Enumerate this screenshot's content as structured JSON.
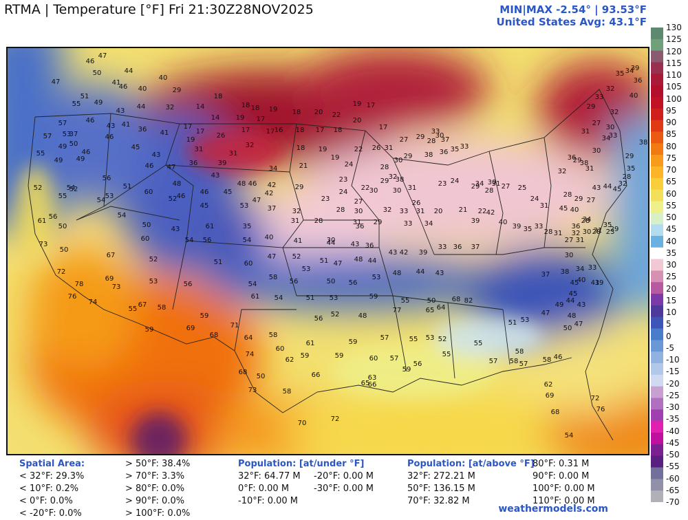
{
  "header": {
    "title": "RTMA | Temperature [°F]  Fri 21:30Z28NOV2025",
    "minmax": "MIN|MAX -2.54° | 93.53°F",
    "avg": "United States Avg: 43.1°F"
  },
  "colorbar": {
    "ticks": [
      "130",
      "125",
      "120",
      "115",
      "110",
      "105",
      "100",
      "95",
      "90",
      "85",
      "80",
      "75",
      "70",
      "65",
      "60",
      "55",
      "50",
      "45",
      "40",
      "35",
      "30",
      "25",
      "20",
      "15",
      "10",
      "5",
      "0",
      "-5",
      "-10",
      "-15",
      "-20",
      "-25",
      "-30",
      "-35",
      "-40",
      "-45",
      "-50",
      "-55",
      "-60",
      "-65",
      "-70"
    ],
    "colors": [
      "#5b8a6e",
      "#6fa07a",
      "#8a5a70",
      "#9a3050",
      "#a81a38",
      "#b30f2b",
      "#c01224",
      "#d0201c",
      "#e03a14",
      "#ea5a10",
      "#f27a12",
      "#f89a1a",
      "#fbb527",
      "#f8cf3a",
      "#f2e05a",
      "#eef08a",
      "#d8f0c8",
      "#b4dcee",
      "#6ab0e0",
      "#ffffff",
      "#f2c8d4",
      "#d690b4",
      "#b85aa0",
      "#7a3aa8",
      "#4e3a9a",
      "#3d54b8",
      "#4a7ccc",
      "#6a98d6",
      "#90b2e0",
      "#b2c8ea",
      "#cfd9f0",
      "#c8a0d0",
      "#b070c0",
      "#a040b0",
      "#e020b0",
      "#c010a0",
      "#7a2090",
      "#5a2080",
      "#70709a",
      "#9090a8",
      "#b0b0b8"
    ]
  },
  "map_labels": [
    {
      "t": "47",
      "c": "#fff"
    },
    {
      "t": "46",
      "c": "#fff"
    },
    {
      "t": "50",
      "c": "#fff"
    },
    {
      "t": "44",
      "c": "#fff"
    },
    {
      "t": "41",
      "c": "#fff"
    },
    {
      "t": "46",
      "c": "#fff"
    },
    {
      "t": "40",
      "c": "#fff"
    },
    {
      "t": "40",
      "c": "#fff"
    },
    {
      "t": "29",
      "c": "#fff"
    },
    {
      "t": "47",
      "c": "#fff"
    },
    {
      "t": "51",
      "c": "#fff"
    },
    {
      "t": "49",
      "c": "#fff"
    },
    {
      "t": "55",
      "c": "#fff"
    },
    {
      "t": "43",
      "c": "#fff"
    },
    {
      "t": "44",
      "c": "#fff"
    },
    {
      "t": "18",
      "c": "#fff"
    },
    {
      "t": "14",
      "c": "#fff"
    },
    {
      "t": "18",
      "c": "#fff"
    },
    {
      "t": "18",
      "c": "#fff"
    },
    {
      "t": "19",
      "c": "#fff"
    },
    {
      "t": "18",
      "c": "#fff"
    },
    {
      "t": "20",
      "c": "#fff"
    },
    {
      "t": "22",
      "c": "#fff"
    },
    {
      "t": "19",
      "c": "#fff"
    },
    {
      "t": "17",
      "c": "#fff"
    },
    {
      "t": "57",
      "c": "#fff"
    },
    {
      "t": "46",
      "c": "#fff"
    },
    {
      "t": "43",
      "c": "#fff"
    },
    {
      "t": "41",
      "c": "#fff"
    },
    {
      "t": "36",
      "c": "#fff"
    },
    {
      "t": "32",
      "c": "#fff"
    },
    {
      "t": "17",
      "c": "#fff"
    },
    {
      "t": "14",
      "c": "#fff"
    },
    {
      "t": "19",
      "c": "#fff"
    },
    {
      "t": "17",
      "c": "#fff"
    },
    {
      "t": "17",
      "c": "#fff"
    },
    {
      "t": "57",
      "c": "#fff"
    },
    {
      "t": "53",
      "c": "#fff"
    },
    {
      "t": "37",
      "c": "#fff"
    },
    {
      "t": "46",
      "c": "#fff"
    },
    {
      "t": "41",
      "c": "#fff"
    },
    {
      "t": "19",
      "c": "#fff"
    },
    {
      "t": "17",
      "c": "#fff"
    },
    {
      "t": "26",
      "c": "#fff"
    },
    {
      "t": "17",
      "c": "#fff"
    },
    {
      "t": "16",
      "c": "#fff"
    },
    {
      "t": "18",
      "c": "#fff"
    },
    {
      "t": "17",
      "c": "#fff"
    },
    {
      "t": "18",
      "c": "#fff"
    },
    {
      "t": "20",
      "c": "#fff"
    },
    {
      "t": "17",
      "c": "#fff"
    },
    {
      "t": "49",
      "c": "#fff"
    },
    {
      "t": "50",
      "c": "#fff"
    },
    {
      "t": "46",
      "c": "#fff"
    },
    {
      "t": "45",
      "c": "#fff"
    },
    {
      "t": "43",
      "c": "#fff"
    },
    {
      "t": "31",
      "c": "#fff"
    },
    {
      "t": "31",
      "c": "#fff"
    },
    {
      "t": "32",
      "c": "#fff"
    },
    {
      "t": "18",
      "c": "#fff"
    },
    {
      "t": "19",
      "c": "#fff"
    },
    {
      "t": "19",
      "c": "#fff"
    },
    {
      "t": "22",
      "c": "#fff"
    },
    {
      "t": "26",
      "c": "#111"
    },
    {
      "t": "55",
      "c": "#fff"
    },
    {
      "t": "49",
      "c": "#fff"
    },
    {
      "t": "49",
      "c": "#fff"
    },
    {
      "t": "46",
      "c": "#fff"
    },
    {
      "t": "47",
      "c": "#fff"
    },
    {
      "t": "36",
      "c": "#fff"
    },
    {
      "t": "39",
      "c": "#fff"
    },
    {
      "t": "34",
      "c": "#fff"
    },
    {
      "t": "21",
      "c": "#fff"
    },
    {
      "t": "24",
      "c": "#fff"
    },
    {
      "t": "56",
      "c": "#111"
    },
    {
      "t": "51",
      "c": "#fff"
    },
    {
      "t": "48",
      "c": "#fff"
    },
    {
      "t": "43",
      "c": "#fff"
    },
    {
      "t": "48",
      "c": "#fff"
    },
    {
      "t": "46",
      "c": "#fff"
    },
    {
      "t": "42",
      "c": "#fff"
    },
    {
      "t": "29",
      "c": "#111"
    },
    {
      "t": "23",
      "c": "#fff"
    },
    {
      "t": "52",
      "c": "#fff"
    },
    {
      "t": "54",
      "c": "#fff"
    },
    {
      "t": "52",
      "c": "#fff"
    },
    {
      "t": "53",
      "c": "#fff"
    },
    {
      "t": "60",
      "c": "#111"
    },
    {
      "t": "52",
      "c": "#fff"
    },
    {
      "t": "46",
      "c": "#fff"
    },
    {
      "t": "45",
      "c": "#fff"
    },
    {
      "t": "42",
      "c": "#fff"
    },
    {
      "t": "23",
      "c": "#111"
    },
    {
      "t": "24",
      "c": "#111"
    },
    {
      "t": "27",
      "c": "#111"
    },
    {
      "t": "30",
      "c": "#111"
    },
    {
      "t": "29",
      "c": "#111"
    },
    {
      "t": "30",
      "c": "#111"
    },
    {
      "t": "31",
      "c": "#111"
    },
    {
      "t": "61",
      "c": "#111"
    },
    {
      "t": "56",
      "c": "#111"
    },
    {
      "t": "55",
      "c": "#111"
    },
    {
      "t": "54",
      "c": "#fff"
    },
    {
      "t": "46",
      "c": "#fff"
    },
    {
      "t": "45",
      "c": "#fff"
    },
    {
      "t": "53",
      "c": "#fff"
    },
    {
      "t": "47",
      "c": "#fff"
    },
    {
      "t": "37",
      "c": "#fff"
    },
    {
      "t": "32",
      "c": "#111"
    },
    {
      "t": "28",
      "c": "#111"
    },
    {
      "t": "30",
      "c": "#111"
    },
    {
      "t": "32",
      "c": "#111"
    },
    {
      "t": "33",
      "c": "#111"
    },
    {
      "t": "31",
      "c": "#111"
    },
    {
      "t": "50",
      "c": "#fff"
    },
    {
      "t": "54",
      "c": "#fff"
    },
    {
      "t": "50",
      "c": "#fff"
    },
    {
      "t": "43",
      "c": "#fff"
    },
    {
      "t": "61",
      "c": "#111"
    },
    {
      "t": "35",
      "c": "#111"
    },
    {
      "t": "31",
      "c": "#111"
    },
    {
      "t": "28",
      "c": "#111"
    },
    {
      "t": "31",
      "c": "#111"
    },
    {
      "t": "29",
      "c": "#111"
    },
    {
      "t": "33",
      "c": "#111"
    },
    {
      "t": "34",
      "c": "#111"
    },
    {
      "t": "73",
      "c": "#111"
    },
    {
      "t": "50",
      "c": "#fff"
    },
    {
      "t": "60",
      "c": "#111"
    },
    {
      "t": "54",
      "c": "#fff"
    },
    {
      "t": "56",
      "c": "#fff"
    },
    {
      "t": "54",
      "c": "#111"
    },
    {
      "t": "40",
      "c": "#fff"
    },
    {
      "t": "41",
      "c": "#fff"
    },
    {
      "t": "44",
      "c": "#fff"
    },
    {
      "t": "43",
      "c": "#fff"
    },
    {
      "t": "36",
      "c": "#111"
    },
    {
      "t": "33",
      "c": "#111"
    },
    {
      "t": "36",
      "c": "#111"
    },
    {
      "t": "37",
      "c": "#111"
    },
    {
      "t": "67",
      "c": "#111"
    },
    {
      "t": "52",
      "c": "#fff"
    },
    {
      "t": "51",
      "c": "#fff"
    },
    {
      "t": "60",
      "c": "#111"
    },
    {
      "t": "47",
      "c": "#fff"
    },
    {
      "t": "52",
      "c": "#fff"
    },
    {
      "t": "51",
      "c": "#fff"
    },
    {
      "t": "47",
      "c": "#fff"
    },
    {
      "t": "48",
      "c": "#fff"
    },
    {
      "t": "44",
      "c": "#fff"
    },
    {
      "t": "43",
      "c": "#fff"
    },
    {
      "t": "42",
      "c": "#fff"
    },
    {
      "t": "39",
      "c": "#fff"
    },
    {
      "t": "72",
      "c": "#111"
    },
    {
      "t": "69",
      "c": "#111"
    },
    {
      "t": "53",
      "c": "#111"
    },
    {
      "t": "56",
      "c": "#111"
    },
    {
      "t": "54",
      "c": "#fff"
    },
    {
      "t": "58",
      "c": "#111"
    },
    {
      "t": "56",
      "c": "#fff"
    },
    {
      "t": "53",
      "c": "#fff"
    },
    {
      "t": "50",
      "c": "#fff"
    },
    {
      "t": "56",
      "c": "#fff"
    },
    {
      "t": "53",
      "c": "#fff"
    },
    {
      "t": "48",
      "c": "#fff"
    },
    {
      "t": "44",
      "c": "#fff"
    },
    {
      "t": "43",
      "c": "#fff"
    },
    {
      "t": "78",
      "c": "#111"
    },
    {
      "t": "73",
      "c": "#111"
    },
    {
      "t": "61",
      "c": "#111"
    },
    {
      "t": "54",
      "c": "#111"
    },
    {
      "t": "51",
      "c": "#fff"
    },
    {
      "t": "53",
      "c": "#fff"
    },
    {
      "t": "59",
      "c": "#111"
    },
    {
      "t": "55",
      "c": "#fff"
    },
    {
      "t": "50",
      "c": "#fff"
    },
    {
      "t": "68",
      "c": "#111"
    },
    {
      "t": "82",
      "c": "#111"
    },
    {
      "t": "76",
      "c": "#111"
    },
    {
      "t": "74",
      "c": "#111"
    },
    {
      "t": "67",
      "c": "#111"
    },
    {
      "t": "55",
      "c": "#fff"
    },
    {
      "t": "58",
      "c": "#fff"
    },
    {
      "t": "59",
      "c": "#111"
    },
    {
      "t": "56",
      "c": "#111"
    },
    {
      "t": "52",
      "c": "#fff"
    },
    {
      "t": "48",
      "c": "#fff"
    },
    {
      "t": "77",
      "c": "#111"
    },
    {
      "t": "65",
      "c": "#111"
    },
    {
      "t": "64",
      "c": "#111"
    },
    {
      "t": "59",
      "c": "#111"
    },
    {
      "t": "71",
      "c": "#111"
    },
    {
      "t": "69",
      "c": "#111"
    },
    {
      "t": "68",
      "c": "#111"
    },
    {
      "t": "64",
      "c": "#111"
    },
    {
      "t": "58",
      "c": "#111"
    },
    {
      "t": "61",
      "c": "#111"
    },
    {
      "t": "59",
      "c": "#111"
    },
    {
      "t": "57",
      "c": "#111"
    },
    {
      "t": "55",
      "c": "#fff"
    },
    {
      "t": "53",
      "c": "#fff"
    },
    {
      "t": "52",
      "c": "#fff"
    },
    {
      "t": "74",
      "c": "#111"
    },
    {
      "t": "60",
      "c": "#111"
    },
    {
      "t": "59",
      "c": "#111"
    },
    {
      "t": "62",
      "c": "#111"
    },
    {
      "t": "59",
      "c": "#111"
    },
    {
      "t": "60",
      "c": "#111"
    },
    {
      "t": "57",
      "c": "#111"
    },
    {
      "t": "56",
      "c": "#111"
    },
    {
      "t": "68",
      "c": "#111"
    },
    {
      "t": "50",
      "c": "#fff"
    },
    {
      "t": "66",
      "c": "#111"
    },
    {
      "t": "63",
      "c": "#111"
    },
    {
      "t": "59",
      "c": "#111"
    },
    {
      "t": "73",
      "c": "#111"
    },
    {
      "t": "58",
      "c": "#111"
    },
    {
      "t": "66",
      "c": "#111"
    },
    {
      "t": "65",
      "c": "#111"
    },
    {
      "t": "70",
      "c": "#111"
    },
    {
      "t": "72",
      "c": "#111"
    },
    {
      "t": "62",
      "c": "#111"
    },
    {
      "t": "69",
      "c": "#111"
    },
    {
      "t": "68",
      "c": "#111"
    },
    {
      "t": "72",
      "c": "#111"
    },
    {
      "t": "76",
      "c": "#111"
    },
    {
      "t": "54",
      "c": "#fff"
    },
    {
      "t": "55",
      "c": "#fff"
    },
    {
      "t": "55",
      "c": "#fff"
    },
    {
      "t": "57",
      "c": "#fff"
    },
    {
      "t": "58",
      "c": "#fff"
    },
    {
      "t": "58",
      "c": "#fff"
    },
    {
      "t": "57",
      "c": "#fff"
    },
    {
      "t": "58",
      "c": "#fff"
    },
    {
      "t": "46",
      "c": "#fff"
    },
    {
      "t": "51",
      "c": "#fff"
    },
    {
      "t": "53",
      "c": "#fff"
    },
    {
      "t": "47",
      "c": "#fff"
    },
    {
      "t": "49",
      "c": "#fff"
    },
    {
      "t": "50",
      "c": "#fff"
    },
    {
      "t": "48",
      "c": "#fff"
    },
    {
      "t": "47",
      "c": "#fff"
    },
    {
      "t": "45",
      "c": "#fff"
    },
    {
      "t": "43",
      "c": "#fff"
    },
    {
      "t": "44",
      "c": "#fff"
    },
    {
      "t": "45",
      "c": "#fff"
    },
    {
      "t": "40",
      "c": "#fff"
    },
    {
      "t": "41",
      "c": "#fff"
    },
    {
      "t": "39",
      "c": "#fff"
    },
    {
      "t": "37",
      "c": "#111"
    },
    {
      "t": "38",
      "c": "#111"
    },
    {
      "t": "34",
      "c": "#111"
    },
    {
      "t": "33",
      "c": "#111"
    },
    {
      "t": "30",
      "c": "#111"
    },
    {
      "t": "31",
      "c": "#111"
    },
    {
      "t": "28",
      "c": "#111"
    },
    {
      "t": "27",
      "c": "#111"
    },
    {
      "t": "29",
      "c": "#111"
    },
    {
      "t": "31",
      "c": "#111"
    },
    {
      "t": "33",
      "c": "#111"
    },
    {
      "t": "34",
      "c": "#111"
    },
    {
      "t": "36",
      "c": "#111"
    },
    {
      "t": "38",
      "c": "#111"
    },
    {
      "t": "30",
      "c": "#111"
    },
    {
      "t": "32",
      "c": "#111"
    },
    {
      "t": "29",
      "c": "#111"
    },
    {
      "t": "28",
      "c": "#111"
    },
    {
      "t": "31",
      "c": "#111"
    },
    {
      "t": "24",
      "c": "#111"
    },
    {
      "t": "25",
      "c": "#111"
    },
    {
      "t": "27",
      "c": "#111"
    },
    {
      "t": "30",
      "c": "#111"
    },
    {
      "t": "29",
      "c": "#111"
    },
    {
      "t": "24",
      "c": "#111"
    },
    {
      "t": "23",
      "c": "#111"
    },
    {
      "t": "26",
      "c": "#111"
    },
    {
      "t": "20",
      "c": "#111"
    },
    {
      "t": "21",
      "c": "#111"
    },
    {
      "t": "22",
      "c": "#111"
    },
    {
      "t": "28",
      "c": "#111"
    },
    {
      "t": "31",
      "c": "#111"
    },
    {
      "t": "34",
      "c": "#111"
    },
    {
      "t": "35",
      "c": "#111"
    },
    {
      "t": "33",
      "c": "#111"
    },
    {
      "t": "36",
      "c": "#111"
    },
    {
      "t": "38",
      "c": "#111"
    },
    {
      "t": "30",
      "c": "#111"
    },
    {
      "t": "37",
      "c": "#111"
    },
    {
      "t": "33",
      "c": "#111"
    },
    {
      "t": "29",
      "c": "#111"
    },
    {
      "t": "28",
      "c": "#111"
    },
    {
      "t": "27",
      "c": "#111"
    },
    {
      "t": "31",
      "c": "#111"
    },
    {
      "t": "29",
      "c": "#111"
    },
    {
      "t": "30",
      "c": "#111"
    },
    {
      "t": "28",
      "c": "#111"
    },
    {
      "t": "22",
      "c": "#111"
    },
    {
      "t": "30",
      "c": "#111"
    },
    {
      "t": "32",
      "c": "#111"
    },
    {
      "t": "38",
      "c": "#111"
    },
    {
      "t": "36",
      "c": "#111"
    },
    {
      "t": "39",
      "c": "#111"
    },
    {
      "t": "42",
      "c": "#111"
    },
    {
      "t": "40",
      "c": "#111"
    },
    {
      "t": "39",
      "c": "#111"
    },
    {
      "t": "35",
      "c": "#111"
    },
    {
      "t": "33",
      "c": "#111"
    },
    {
      "t": "28",
      "c": "#111"
    },
    {
      "t": "31",
      "c": "#111"
    },
    {
      "t": "27",
      "c": "#111"
    },
    {
      "t": "32",
      "c": "#111"
    },
    {
      "t": "30",
      "c": "#111"
    },
    {
      "t": "28",
      "c": "#111"
    },
    {
      "t": "23",
      "c": "#111"
    },
    {
      "t": "29",
      "c": "#111"
    },
    {
      "t": "35",
      "c": "#111"
    },
    {
      "t": "31",
      "c": "#111"
    },
    {
      "t": "34",
      "c": "#111"
    },
    {
      "t": "36",
      "c": "#111"
    },
    {
      "t": "40",
      "c": "#111"
    },
    {
      "t": "45",
      "c": "#fff"
    },
    {
      "t": "43",
      "c": "#fff"
    },
    {
      "t": "44",
      "c": "#fff"
    },
    {
      "t": "45",
      "c": "#fff"
    },
    {
      "t": "32",
      "c": "#111"
    },
    {
      "t": "28",
      "c": "#111"
    },
    {
      "t": "35",
      "c": "#111"
    },
    {
      "t": "29",
      "c": "#111"
    },
    {
      "t": "30",
      "c": "#111"
    },
    {
      "t": "32",
      "c": "#111"
    },
    {
      "t": "27",
      "c": "#111"
    },
    {
      "t": "31",
      "c": "#111"
    },
    {
      "t": "29",
      "c": "#111"
    },
    {
      "t": "33",
      "c": "#111"
    },
    {
      "t": "32",
      "c": "#111"
    },
    {
      "t": "35",
      "c": "#111"
    },
    {
      "t": "34",
      "c": "#111"
    },
    {
      "t": "40",
      "c": "#111"
    },
    {
      "t": "36",
      "c": "#111"
    },
    {
      "t": "39",
      "c": "#111"
    },
    {
      "t": "38",
      "c": "#111"
    }
  ],
  "footer": {
    "spatial": {
      "head": "Spatial Area:",
      "lines_a": [
        "< 32°F: 29.3%",
        "< 10°F: 0.2%",
        "< 0°F: 0.0%",
        "< -20°F: 0.0%"
      ],
      "lines_b": [
        "> 50°F: 38.4%",
        "> 70°F: 3.3%",
        "> 80°F: 0.0%",
        "> 90°F: 0.0%",
        "> 100°F: 0.0%"
      ]
    },
    "pop_under": {
      "head": "Population: [at/under °F]",
      "lines_a": [
        "32°F: 64.77 M",
        "0°F: 0.00 M",
        "-10°F: 0.00 M"
      ],
      "lines_b": [
        "-20°F: 0.00 M",
        "-30°F: 0.00 M"
      ]
    },
    "pop_above": {
      "head": "Population: [at/above °F]",
      "lines_a": [
        "32°F: 272.21 M",
        "50°F: 136.15 M",
        "70°F: 32.82 M"
      ],
      "lines_b": [
        "80°F: 0.31 M",
        "90°F: 0.00 M",
        "100°F: 0.00 M",
        "110°F: 0.00 M"
      ]
    },
    "credit": "weathermodels.com"
  }
}
